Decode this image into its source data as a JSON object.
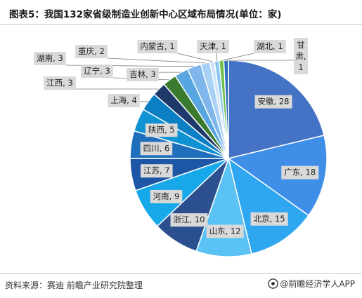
{
  "title": "图表5：我国132家省级制造业创新中心区域布局情况(单位：家)",
  "source": "资料来源：赛迪 前瞻产业研究院整理",
  "brand": "@前瞻经济学人APP",
  "chart_data": {
    "type": "pie",
    "total": 132,
    "slices": [
      {
        "name": "安徽",
        "value": 28,
        "color": "#4472c4"
      },
      {
        "name": "广东",
        "value": 18,
        "color": "#3f8ee8"
      },
      {
        "name": "北京",
        "value": 15,
        "color": "#2fa7f0"
      },
      {
        "name": "山东",
        "value": 12,
        "color": "#5ac2f5"
      },
      {
        "name": "浙江",
        "value": 10,
        "color": "#2b4f8f"
      },
      {
        "name": "河南",
        "value": 9,
        "color": "#17a8ea"
      },
      {
        "name": "江苏",
        "value": 7,
        "color": "#1e56a6"
      },
      {
        "name": "四川",
        "value": 6,
        "color": "#1f6fbd"
      },
      {
        "name": "陕西",
        "value": 5,
        "color": "#0f92d4"
      },
      {
        "name": "上海",
        "value": 4,
        "color": "#0b7ec4"
      },
      {
        "name": "江西",
        "value": 3,
        "color": "#1f3a6a"
      },
      {
        "name": "辽宁",
        "value": 3,
        "color": "#3a7a2e"
      },
      {
        "name": "吉林",
        "value": 3,
        "color": "#58a6e0"
      },
      {
        "name": "湖南",
        "value": 3,
        "color": "#7fb6ec"
      },
      {
        "name": "重庆",
        "value": 2,
        "color": "#a9d1f5"
      },
      {
        "name": "内蒙古",
        "value": 1,
        "color": "#cfe4f8"
      },
      {
        "name": "天津",
        "value": 1,
        "color": "#88c6ee"
      },
      {
        "name": "湖北",
        "value": 1,
        "color": "#6cbf4c"
      },
      {
        "name": "甘肃",
        "value": 1,
        "color": "#2e6fbb"
      }
    ]
  }
}
